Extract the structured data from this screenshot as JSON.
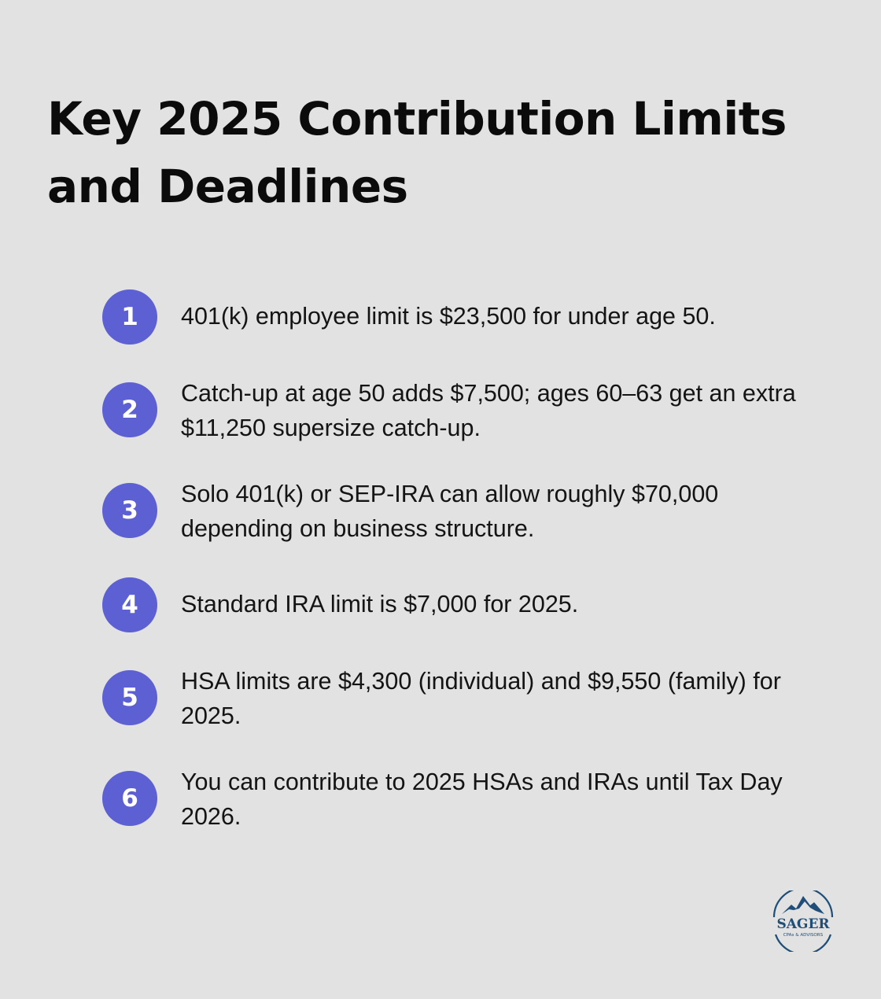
{
  "title": "Key 2025 Contribution Limits and Deadlines",
  "items": [
    {
      "number": "1",
      "text": "401(k) employee limit is $23,500 for under age 50."
    },
    {
      "number": "2",
      "text": "Catch-up at age 50 adds $7,500; ages 60–63 get an extra $11,250 supersize catch-up."
    },
    {
      "number": "3",
      "text": "Solo 401(k) or SEP-IRA can allow roughly $70,000 depending on business structure."
    },
    {
      "number": "4",
      "text": "Standard IRA limit is $7,000 for 2025."
    },
    {
      "number": "5",
      "text": "HSA limits are $4,300 (individual) and $9,550 (family) for 2025."
    },
    {
      "number": "6",
      "text": "You can contribute to 2025 HSAs and IRAs until Tax Day 2026."
    }
  ],
  "logo": {
    "name": "SAGER",
    "tagline": "CPAs & ADVISORS",
    "icon": "mountain-icon"
  },
  "colors": {
    "background": "#e1e2e1",
    "badge": "#5d60d3",
    "logo": "#1f4e79"
  }
}
